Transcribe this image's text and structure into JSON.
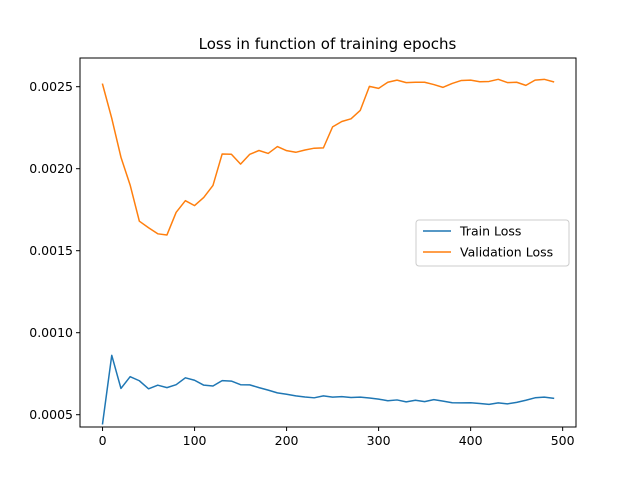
{
  "chart_data": {
    "type": "line",
    "title": "Loss in function of training epochs",
    "xlabel": "",
    "ylabel": "",
    "xlim": [
      -24.5,
      514.5
    ],
    "ylim": [
      0.000425,
      0.002675
    ],
    "xticks": [
      0,
      100,
      200,
      300,
      400,
      500
    ],
    "yticks": [
      0.0005,
      0.001,
      0.0015,
      0.002,
      0.0025
    ],
    "ytick_labels": [
      "0.0005",
      "0.0010",
      "0.0015",
      "0.0020",
      "0.0025"
    ],
    "xtick_labels": [
      "0",
      "100",
      "200",
      "300",
      "400",
      "500"
    ],
    "grid": false,
    "legend_position": "center-right",
    "x": [
      0,
      10,
      20,
      30,
      40,
      50,
      60,
      70,
      80,
      90,
      100,
      110,
      120,
      130,
      140,
      150,
      160,
      170,
      180,
      190,
      200,
      210,
      220,
      230,
      240,
      250,
      260,
      270,
      280,
      290,
      300,
      310,
      320,
      330,
      340,
      350,
      360,
      370,
      380,
      390,
      400,
      410,
      420,
      430,
      440,
      450,
      460,
      470,
      480,
      490
    ],
    "series": [
      {
        "name": "Train Loss",
        "color": "#1f77b4",
        "values": [
          0.000445,
          0.000862,
          0.00066,
          0.000732,
          0.000707,
          0.000658,
          0.00068,
          0.000665,
          0.000683,
          0.000725,
          0.00071,
          0.00068,
          0.000675,
          0.000708,
          0.000705,
          0.000683,
          0.000682,
          0.000665,
          0.00065,
          0.000633,
          0.000625,
          0.000615,
          0.000608,
          0.000603,
          0.000615,
          0.000607,
          0.00061,
          0.000605,
          0.000607,
          0.000602,
          0.000595,
          0.000585,
          0.00059,
          0.000578,
          0.000588,
          0.00058,
          0.000592,
          0.000583,
          0.000573,
          0.000572,
          0.000573,
          0.000568,
          0.000563,
          0.000572,
          0.000566,
          0.000575,
          0.000588,
          0.000603,
          0.000607,
          0.0006
        ]
      },
      {
        "name": "Validation Loss",
        "color": "#ff7f0e",
        "values": [
          0.002515,
          0.002307,
          0.00207,
          0.0019,
          0.00168,
          0.00164,
          0.001603,
          0.001596,
          0.001734,
          0.001805,
          0.001775,
          0.001825,
          0.001898,
          0.00209,
          0.002088,
          0.002028,
          0.002088,
          0.002111,
          0.002093,
          0.002135,
          0.00211,
          0.0021,
          0.002114,
          0.002125,
          0.002127,
          0.002255,
          0.002288,
          0.002304,
          0.002355,
          0.002502,
          0.00249,
          0.002527,
          0.00254,
          0.002525,
          0.002527,
          0.002527,
          0.002513,
          0.002496,
          0.00252,
          0.002538,
          0.00254,
          0.00253,
          0.002532,
          0.002545,
          0.002525,
          0.002527,
          0.002508,
          0.00254,
          0.002545,
          0.00253
        ]
      }
    ]
  }
}
